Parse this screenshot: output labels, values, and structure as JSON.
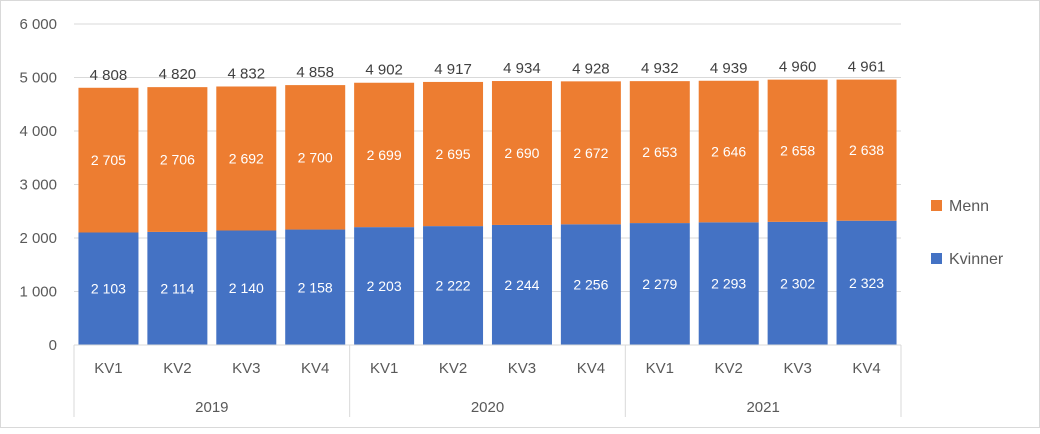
{
  "chart_data": {
    "type": "bar",
    "stacked": true,
    "categories": [
      "KV1",
      "KV2",
      "KV3",
      "KV4",
      "KV1",
      "KV2",
      "KV3",
      "KV4",
      "KV1",
      "KV2",
      "KV3",
      "KV4"
    ],
    "groups": [
      {
        "label": "2019",
        "count": 4
      },
      {
        "label": "2020",
        "count": 4
      },
      {
        "label": "2021",
        "count": 4
      }
    ],
    "series": [
      {
        "name": "Kvinner",
        "color": "#4472c4",
        "values": [
          2103,
          2114,
          2140,
          2158,
          2203,
          2222,
          2244,
          2256,
          2279,
          2293,
          2302,
          2323
        ]
      },
      {
        "name": "Menn",
        "color": "#ed7d31",
        "values": [
          2705,
          2706,
          2692,
          2700,
          2699,
          2695,
          2690,
          2672,
          2653,
          2646,
          2658,
          2638
        ]
      }
    ],
    "totals": [
      4808,
      4820,
      4832,
      4858,
      4902,
      4917,
      4934,
      4928,
      4932,
      4939,
      4960,
      4961
    ],
    "ylim": [
      0,
      6000
    ],
    "yticks": [
      0,
      1000,
      2000,
      3000,
      4000,
      5000,
      6000
    ],
    "ytick_labels": [
      "0",
      "1 000",
      "2 000",
      "3 000",
      "4 000",
      "5 000",
      "6 000"
    ],
    "grid": true,
    "legend": "right",
    "legend_order": [
      "Menn",
      "Kvinner"
    ]
  }
}
